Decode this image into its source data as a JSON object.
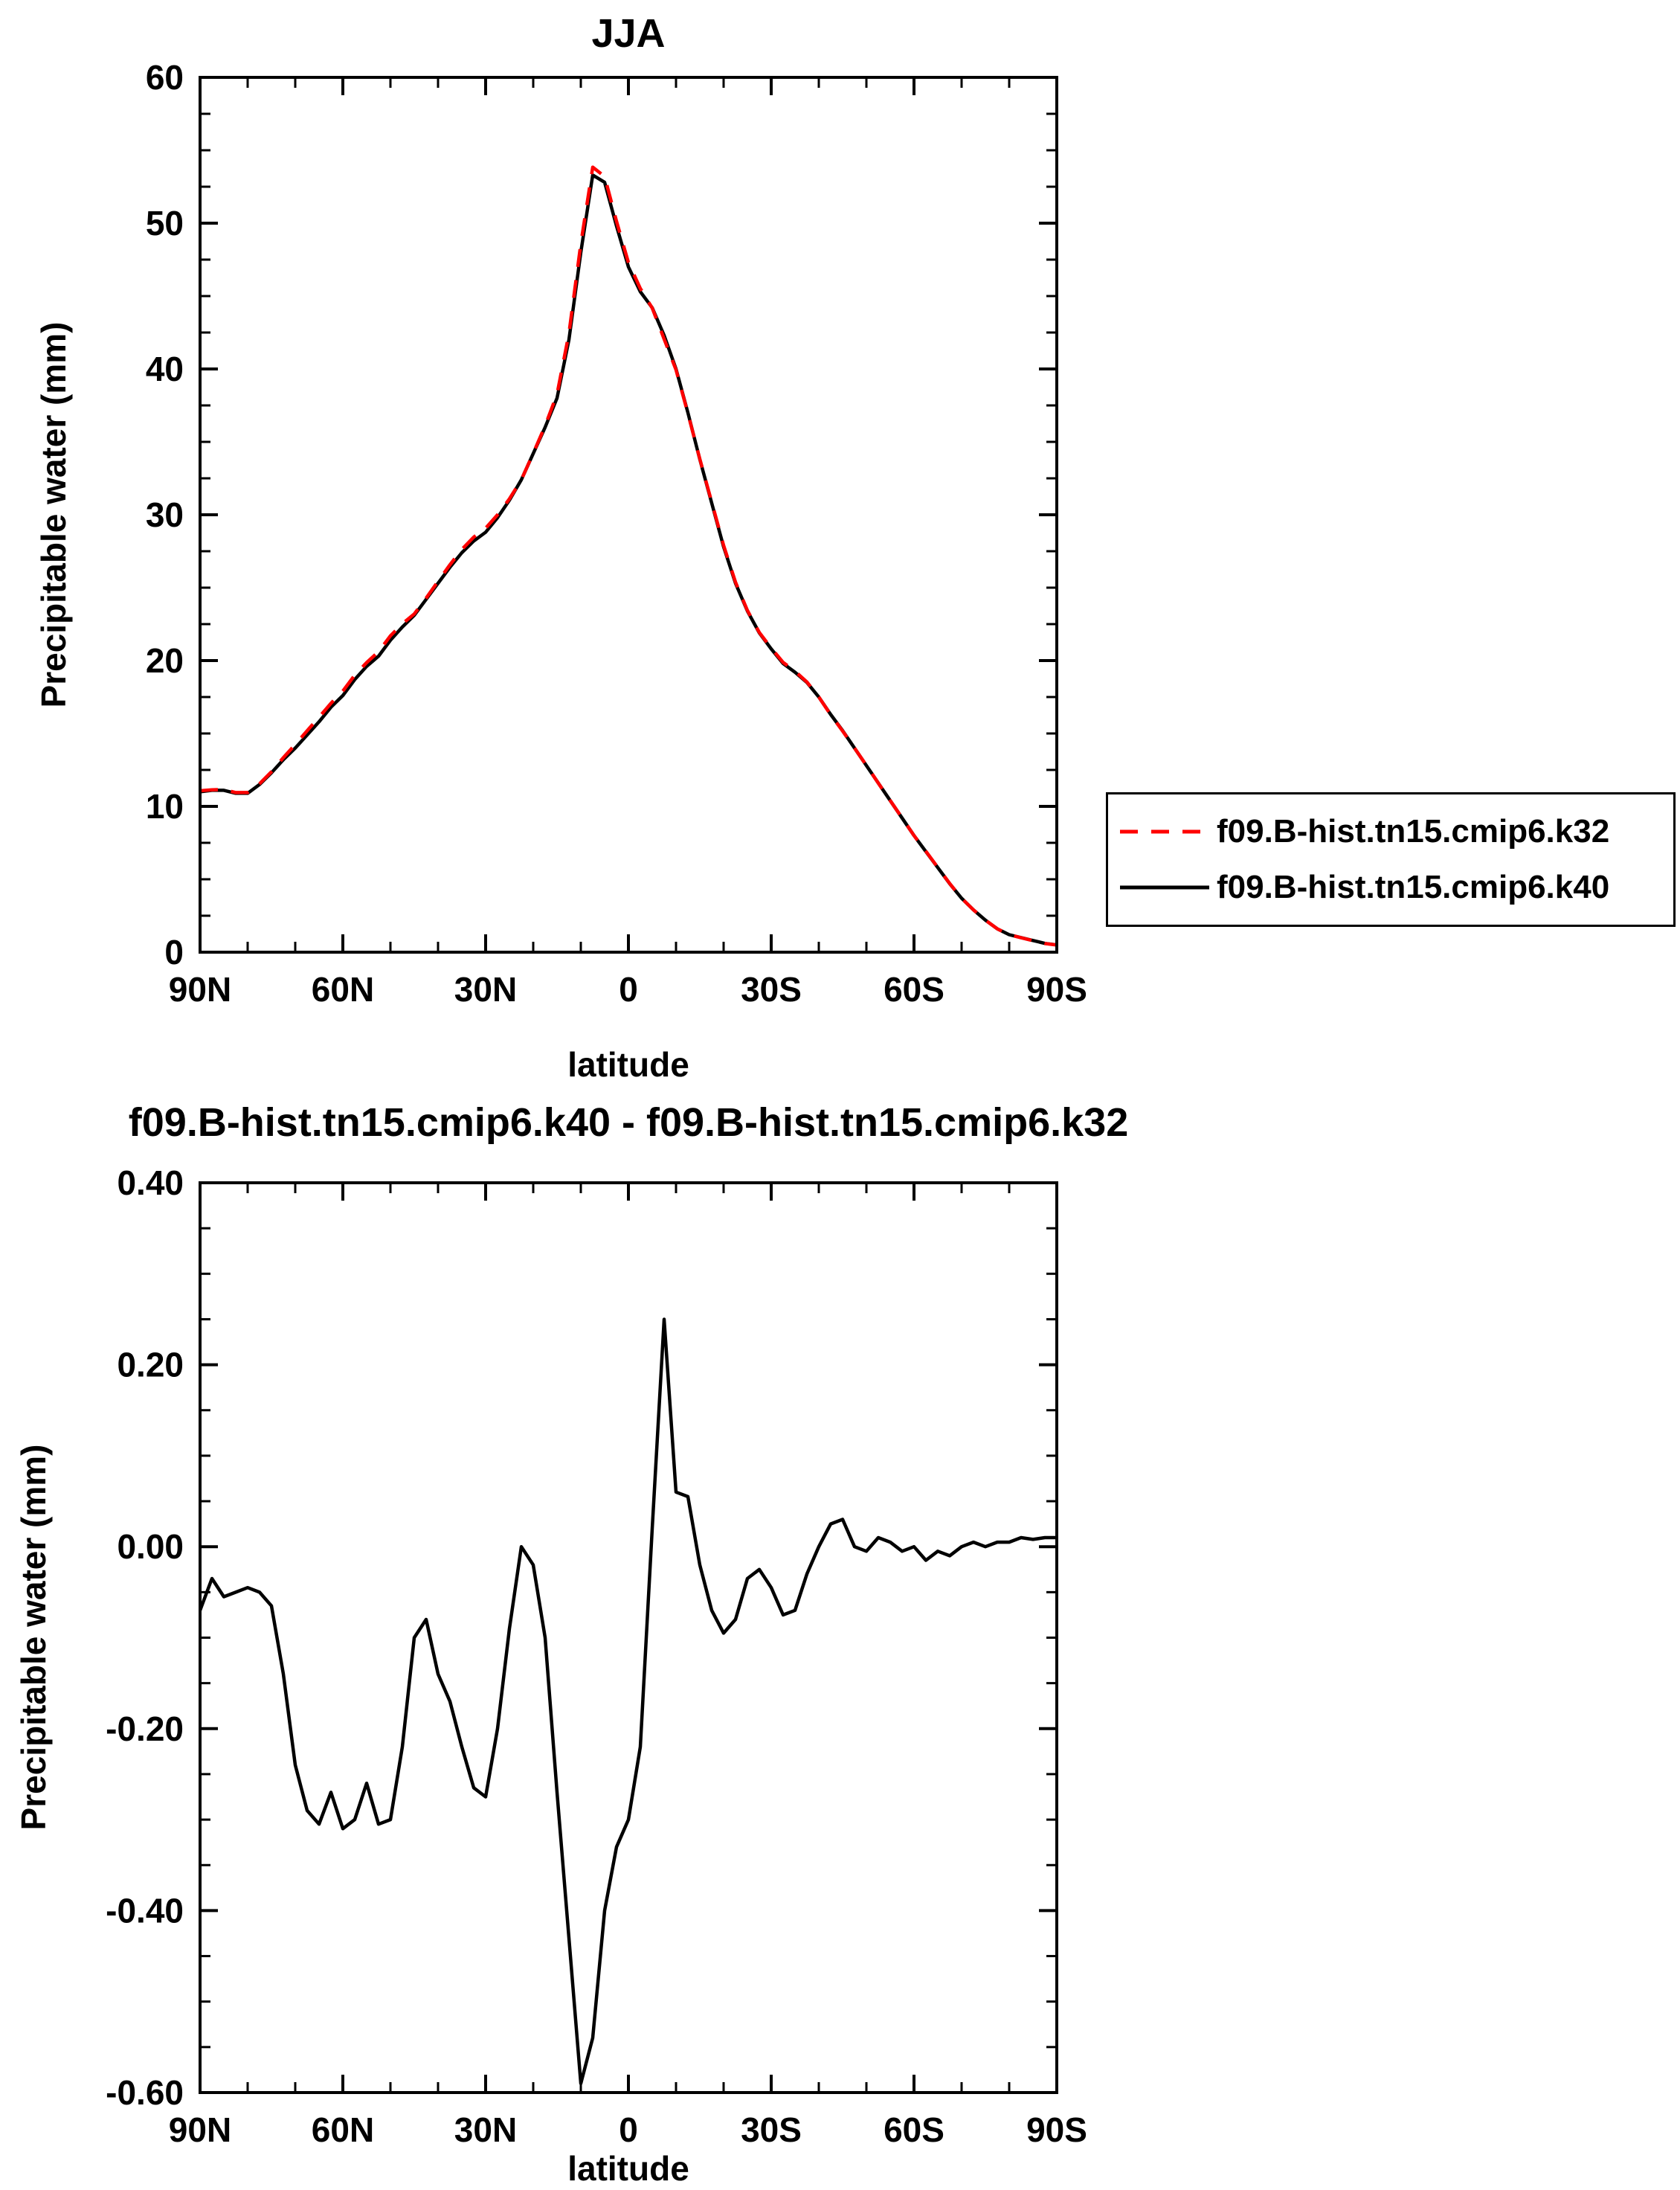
{
  "page": {
    "background": "#ffffff"
  },
  "chart_data": [
    {
      "type": "line",
      "title": "JJA",
      "xlabel": "latitude",
      "ylabel": "Precipitable water (mm)",
      "xlim": [
        90,
        -90
      ],
      "ylim": [
        0,
        60
      ],
      "x_tick_values": [
        90,
        60,
        30,
        0,
        -30,
        -60,
        -90
      ],
      "x_tick_labels": [
        "90N",
        "60N",
        "30N",
        "0",
        "30S",
        "60S",
        "90S"
      ],
      "y_tick_values": [
        0,
        10,
        20,
        30,
        40,
        50,
        60
      ],
      "y_tick_labels": [
        "0",
        "10",
        "20",
        "30",
        "40",
        "50",
        "60"
      ],
      "x_minor_step": 10,
      "y_minor_step": 2.5,
      "grid": false,
      "legend_position": "outside-right-bottom",
      "x": [
        90,
        87.5,
        85,
        82.5,
        80,
        77.5,
        75,
        72.5,
        70,
        67.5,
        65,
        62.5,
        60,
        57.5,
        55,
        52.5,
        50,
        47.5,
        45,
        42.5,
        40,
        37.5,
        35,
        32.5,
        30,
        27.5,
        25,
        22.5,
        20,
        17.5,
        15,
        12.5,
        10,
        7.5,
        5,
        2.5,
        0,
        -2.5,
        -5,
        -7.5,
        -10,
        -12.5,
        -15,
        -17.5,
        -20,
        -22.5,
        -25,
        -27.5,
        -30,
        -32.5,
        -35,
        -37.5,
        -40,
        -42.5,
        -45,
        -47.5,
        -50,
        -52.5,
        -55,
        -57.5,
        -60,
        -62.5,
        -65,
        -67.5,
        -70,
        -72.5,
        -75,
        -77.5,
        -80,
        -82.5,
        -85,
        -87.5,
        -90
      ],
      "series": [
        {
          "name": "f09.B-hist.tn15.cmip6.k32",
          "color": "#ff0000",
          "style": "dashed",
          "values": [
            11.07,
            11.14,
            11.16,
            10.95,
            10.95,
            11.55,
            12.37,
            13.34,
            14.24,
            15.19,
            16.11,
            17.07,
            17.91,
            19.0,
            19.86,
            20.61,
            21.7,
            22.52,
            23.2,
            24.28,
            25.44,
            26.57,
            27.62,
            28.47,
            29.08,
            30.0,
            31.09,
            32.4,
            34.22,
            36.1,
            38.27,
            42.43,
            48.59,
            53.84,
            53.2,
            50.13,
            47.3,
            45.52,
            44.18,
            42.05,
            39.94,
            36.95,
            33.82,
            30.87,
            27.9,
            25.38,
            23.44,
            21.93,
            20.85,
            19.88,
            19.27,
            18.53,
            17.5,
            16.28,
            15.17,
            14.0,
            12.81,
            11.59,
            10.4,
            9.21,
            8.0,
            6.92,
            5.81,
            4.71,
            3.7,
            2.9,
            2.2,
            1.6,
            1.2,
            0.99,
            0.79,
            0.59,
            0.49
          ]
        },
        {
          "name": "f09.B-hist.tn15.cmip6.k40",
          "color": "#000000",
          "style": "solid",
          "values": [
            11.0,
            11.1,
            11.1,
            10.9,
            10.9,
            11.5,
            12.3,
            13.2,
            14.0,
            14.9,
            15.8,
            16.8,
            17.6,
            18.7,
            19.6,
            20.3,
            21.4,
            22.3,
            23.1,
            24.2,
            25.3,
            26.4,
            27.4,
            28.2,
            28.8,
            29.8,
            31.0,
            32.4,
            34.2,
            36.0,
            38.0,
            42.0,
            48.0,
            53.3,
            52.8,
            49.8,
            47.0,
            45.3,
            44.2,
            42.3,
            40.0,
            37.0,
            33.8,
            30.8,
            27.8,
            25.3,
            23.4,
            21.9,
            20.8,
            19.8,
            19.2,
            18.5,
            17.5,
            16.3,
            15.2,
            14.0,
            12.8,
            11.6,
            10.4,
            9.2,
            8.0,
            6.9,
            5.8,
            4.7,
            3.7,
            2.9,
            2.2,
            1.6,
            1.2,
            1.0,
            0.8,
            0.6,
            0.5
          ]
        }
      ]
    },
    {
      "type": "line",
      "title": "f09.B-hist.tn15.cmip6.k40 - f09.B-hist.tn15.cmip6.k32",
      "xlabel": "latitude",
      "ylabel": "Precipitable water (mm)",
      "xlim": [
        90,
        -90
      ],
      "ylim": [
        -0.6,
        0.4
      ],
      "x_tick_values": [
        90,
        60,
        30,
        0,
        -30,
        -60,
        -90
      ],
      "x_tick_labels": [
        "90N",
        "60N",
        "30N",
        "0",
        "30S",
        "60S",
        "90S"
      ],
      "y_tick_values": [
        -0.6,
        -0.4,
        -0.2,
        0,
        0.2,
        0.4
      ],
      "y_tick_labels": [
        "-0.60",
        "-0.40",
        "-0.20",
        "0.00",
        "0.20",
        "0.40"
      ],
      "x_minor_step": 10,
      "y_minor_step": 0.05,
      "grid": false,
      "x": [
        90,
        87.5,
        85,
        82.5,
        80,
        77.5,
        75,
        72.5,
        70,
        67.5,
        65,
        62.5,
        60,
        57.5,
        55,
        52.5,
        50,
        47.5,
        45,
        42.5,
        40,
        37.5,
        35,
        32.5,
        30,
        27.5,
        25,
        22.5,
        20,
        17.5,
        15,
        12.5,
        10,
        7.5,
        5,
        2.5,
        0,
        -2.5,
        -5,
        -7.5,
        -10,
        -12.5,
        -15,
        -17.5,
        -20,
        -22.5,
        -25,
        -27.5,
        -30,
        -32.5,
        -35,
        -37.5,
        -40,
        -42.5,
        -45,
        -47.5,
        -50,
        -52.5,
        -55,
        -57.5,
        -60,
        -62.5,
        -65,
        -67.5,
        -70,
        -72.5,
        -75,
        -77.5,
        -80,
        -82.5,
        -85,
        -87.5,
        -90
      ],
      "series": [
        {
          "name": "f09.B-hist.tn15.cmip6.k40 - f09.B-hist.tn15.cmip6.k32",
          "color": "#000000",
          "style": "solid",
          "values": [
            -0.07,
            -0.035,
            -0.055,
            -0.05,
            -0.045,
            -0.05,
            -0.065,
            -0.14,
            -0.24,
            -0.29,
            -0.305,
            -0.27,
            -0.31,
            -0.3,
            -0.26,
            -0.305,
            -0.3,
            -0.22,
            -0.1,
            -0.08,
            -0.14,
            -0.17,
            -0.22,
            -0.265,
            -0.275,
            -0.2,
            -0.09,
            0.0,
            -0.02,
            -0.1,
            -0.27,
            -0.43,
            -0.59,
            -0.54,
            -0.4,
            -0.33,
            -0.3,
            -0.22,
            0.02,
            0.25,
            0.06,
            0.055,
            -0.02,
            -0.07,
            -0.095,
            -0.08,
            -0.035,
            -0.025,
            -0.045,
            -0.075,
            -0.07,
            -0.03,
            0.0,
            0.025,
            0.03,
            0.0,
            -0.005,
            0.01,
            0.005,
            -0.005,
            0.0,
            -0.015,
            -0.005,
            -0.01,
            0.0,
            0.005,
            0.0,
            0.005,
            0.005,
            0.01,
            0.008,
            0.01,
            0.01
          ]
        }
      ]
    }
  ]
}
